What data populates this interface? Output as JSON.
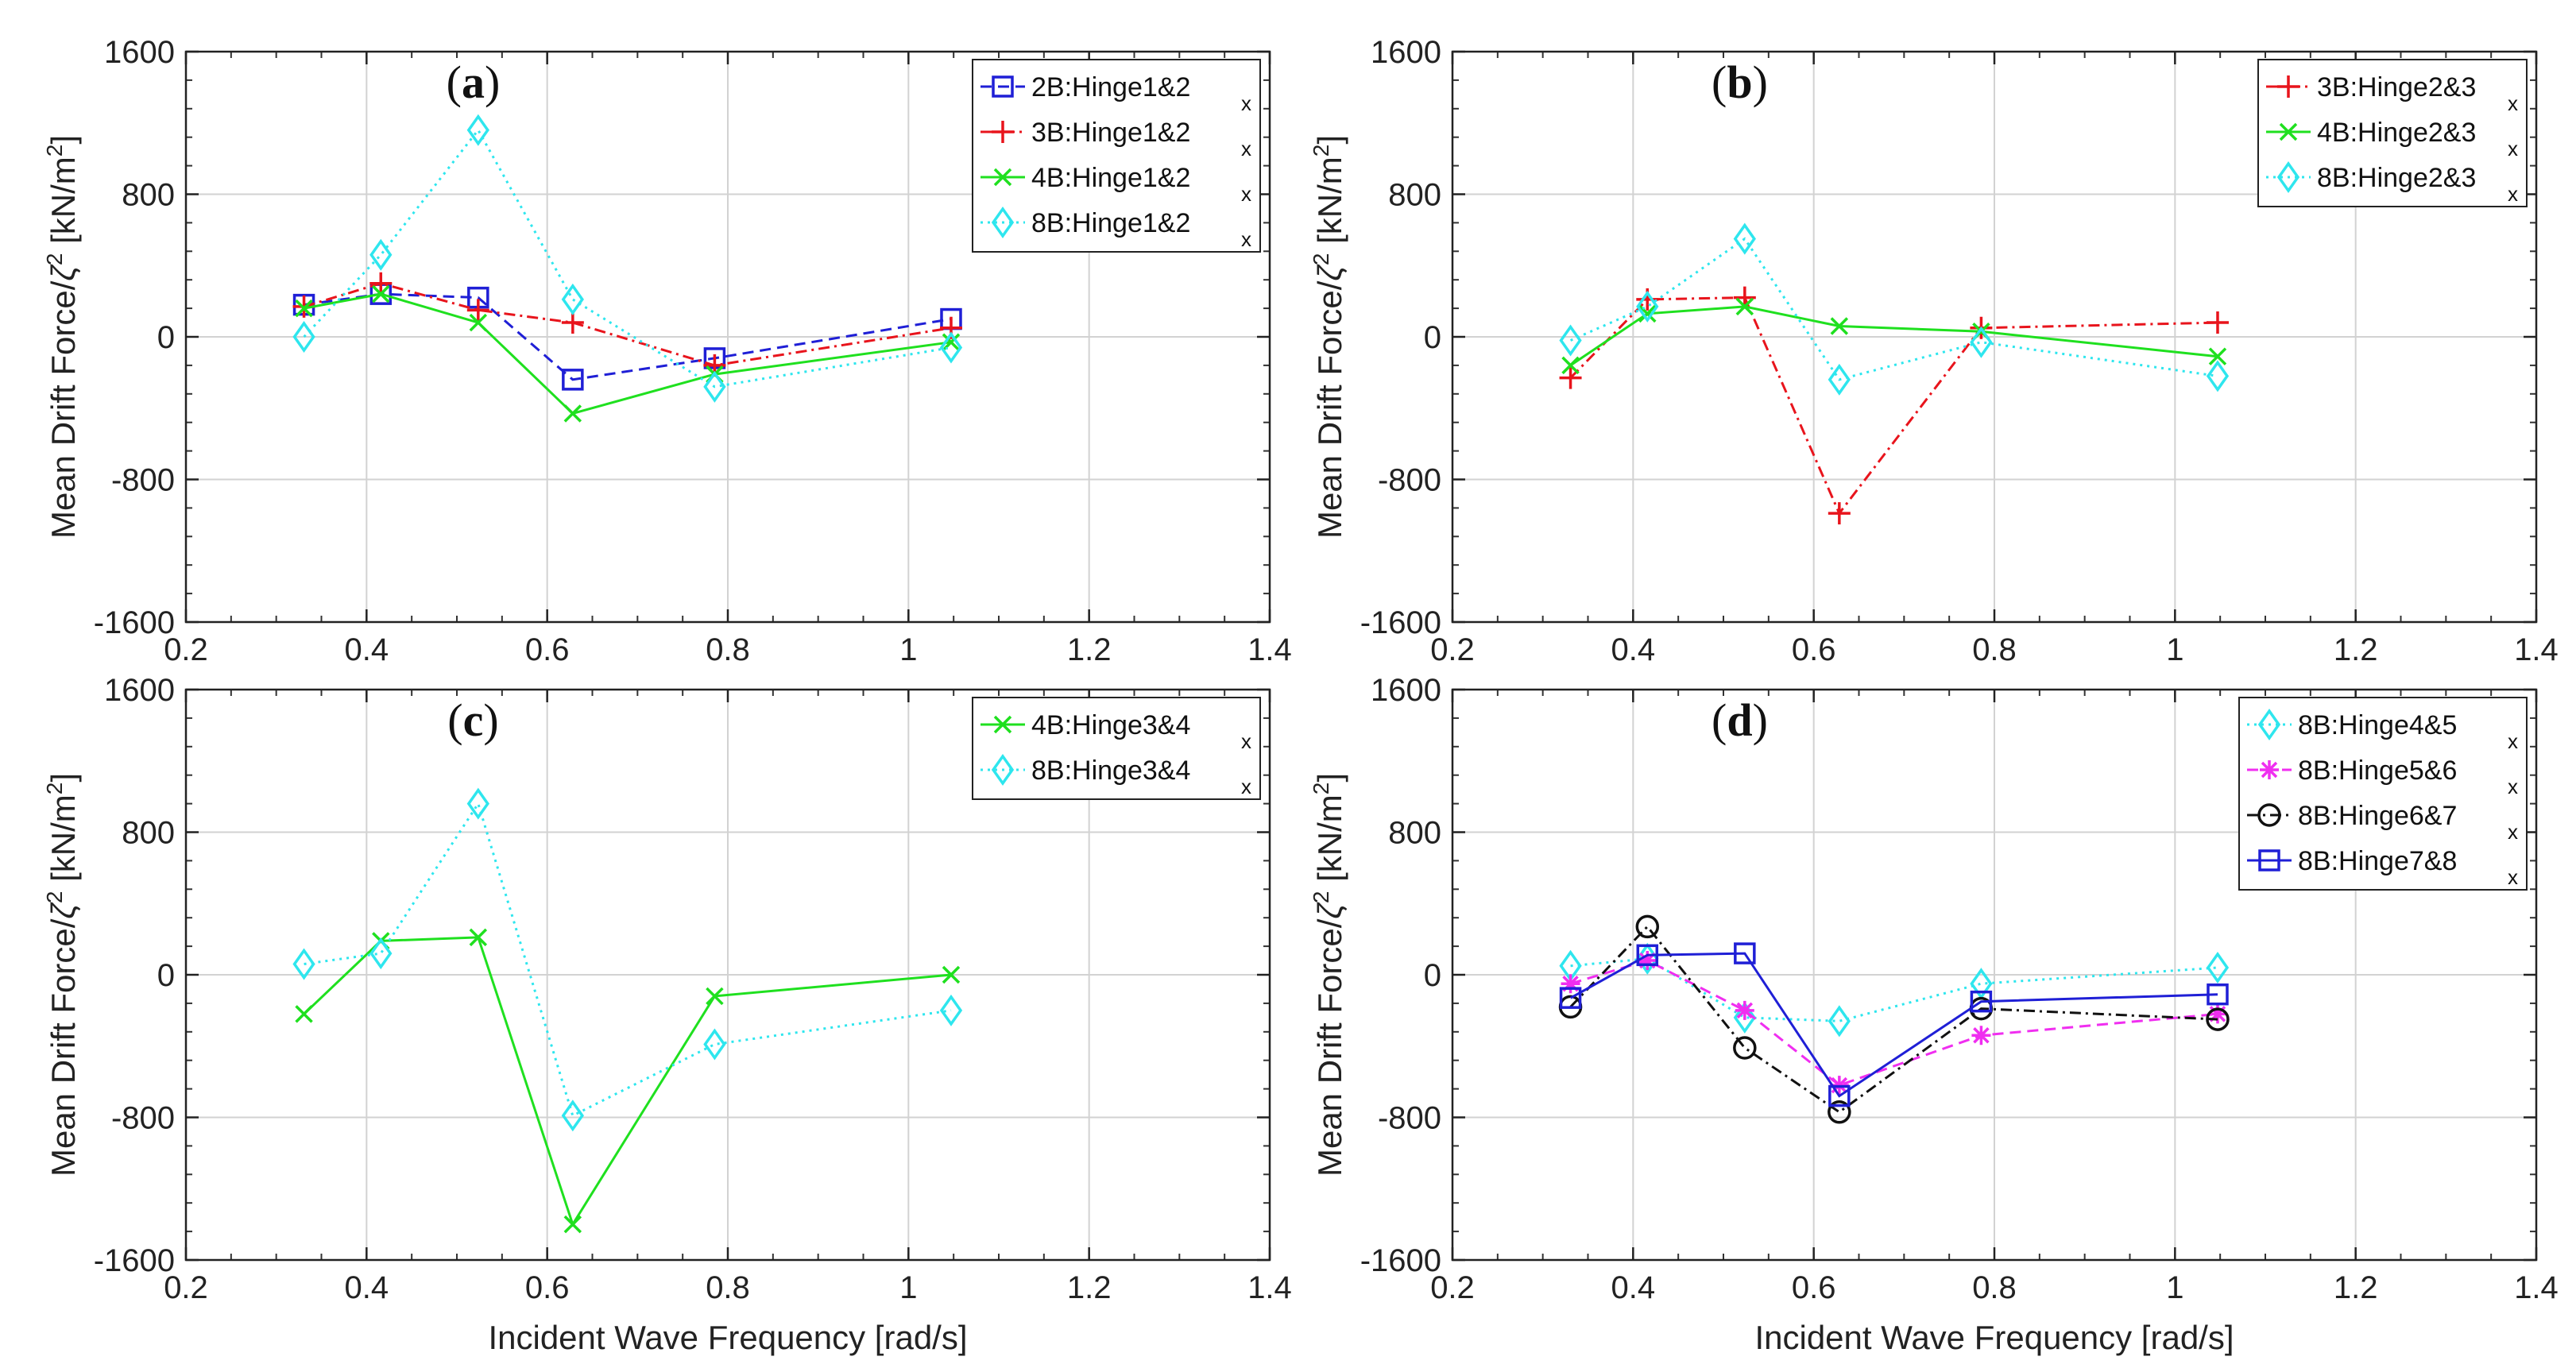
{
  "figure": {
    "xlabel": "Incident Wave Frequency [rad/s]",
    "ylabel_main": "Mean Drift Force/",
    "ylabel_symbol": "ζ",
    "ylabel_sup": "2",
    "ylabel_unit": " [kN/m",
    "ylabel_unit_sup": "2",
    "ylabel_end": "]"
  },
  "chart_data": [
    {
      "type": "line",
      "panel": "(a)",
      "title": "(a)",
      "xlim": [
        0.2,
        1.4
      ],
      "ylim": [
        -1600,
        1600
      ],
      "xticks": [
        "0.2",
        "0.4",
        "0.6",
        "0.8",
        "1",
        "1.2",
        "1.4"
      ],
      "yticks": [
        "1600",
        "800",
        "0",
        "-800",
        "-1600"
      ],
      "grid": true,
      "legend_position": "top-right",
      "x": [
        0.3307,
        0.4158,
        0.5236,
        0.6283,
        0.7854,
        1.0472
      ],
      "series": [
        {
          "name": "2B:Hinge1&2",
          "sub": "x",
          "color": "#1f1fd6",
          "dash": "14,8",
          "marker": "square",
          "values": [
            180,
            240,
            220,
            -240,
            -120,
            100
          ]
        },
        {
          "name": "3B:Hinge1&2",
          "sub": "x",
          "color": "#e8141c",
          "dash": "14,6,3,6",
          "marker": "plus",
          "values": [
            170,
            300,
            150,
            80,
            -160,
            50
          ]
        },
        {
          "name": "4B:Hinge1&2",
          "sub": "x",
          "color": "#1fe01f",
          "dash": "",
          "marker": "x",
          "values": [
            160,
            240,
            80,
            -430,
            -210,
            -30
          ]
        },
        {
          "name": "8B:Hinge1&2",
          "sub": "x",
          "color": "#2ee6ee",
          "dash": "3,6",
          "marker": "diamond",
          "values": [
            0,
            460,
            1160,
            210,
            -280,
            -60
          ]
        }
      ]
    },
    {
      "type": "line",
      "panel": "(b)",
      "title": "(b)",
      "xlim": [
        0.2,
        1.4
      ],
      "ylim": [
        -1600,
        1600
      ],
      "xticks": [
        "0.2",
        "0.4",
        "0.6",
        "0.8",
        "1",
        "1.2",
        "1.4"
      ],
      "yticks": [
        "1600",
        "800",
        "0",
        "-800",
        "-1600"
      ],
      "grid": true,
      "legend_position": "top-right",
      "x": [
        0.3307,
        0.4158,
        0.5236,
        0.6283,
        0.7854,
        1.0472
      ],
      "series": [
        {
          "name": "3B:Hinge2&3",
          "sub": "x",
          "color": "#e8141c",
          "dash": "14,6,3,6",
          "marker": "plus",
          "values": [
            -230,
            210,
            220,
            -990,
            50,
            80
          ]
        },
        {
          "name": "4B:Hinge2&3",
          "sub": "x",
          "color": "#1fe01f",
          "dash": "",
          "marker": "x",
          "values": [
            -160,
            130,
            170,
            60,
            30,
            -110
          ]
        },
        {
          "name": "8B:Hinge2&3",
          "sub": "x",
          "color": "#2ee6ee",
          "dash": "3,6",
          "marker": "diamond",
          "values": [
            -20,
            170,
            550,
            -240,
            -30,
            -220
          ]
        }
      ]
    },
    {
      "type": "line",
      "panel": "(c)",
      "title": "(c)",
      "xlim": [
        0.2,
        1.4
      ],
      "ylim": [
        -1600,
        1600
      ],
      "xticks": [
        "0.2",
        "0.4",
        "0.6",
        "0.8",
        "1",
        "1.2",
        "1.4"
      ],
      "yticks": [
        "1600",
        "800",
        "0",
        "-800",
        "-1600"
      ],
      "grid": true,
      "legend_position": "top-right",
      "x": [
        0.3307,
        0.4158,
        0.5236,
        0.6283,
        0.7854,
        1.0472
      ],
      "series": [
        {
          "name": "4B:Hinge3&4",
          "sub": "x",
          "color": "#1fe01f",
          "dash": "",
          "marker": "x",
          "values": [
            -220,
            190,
            210,
            -1400,
            -120,
            0
          ]
        },
        {
          "name": "8B:Hinge3&4",
          "sub": "x",
          "color": "#2ee6ee",
          "dash": "3,6",
          "marker": "diamond",
          "values": [
            60,
            120,
            960,
            -790,
            -390,
            -200
          ]
        }
      ]
    },
    {
      "type": "line",
      "panel": "(d)",
      "title": "(d)",
      "xlim": [
        0.2,
        1.4
      ],
      "ylim": [
        -1600,
        1600
      ],
      "xticks": [
        "0.2",
        "0.4",
        "0.6",
        "0.8",
        "1",
        "1.2",
        "1.4"
      ],
      "yticks": [
        "1600",
        "800",
        "0",
        "-800",
        "-1600"
      ],
      "grid": true,
      "legend_position": "top-right",
      "x": [
        0.3307,
        0.4158,
        0.5236,
        0.6283,
        0.7854,
        1.0472
      ],
      "series": [
        {
          "name": "8B:Hinge4&5",
          "sub": "x",
          "color": "#2ee6ee",
          "dash": "3,6",
          "marker": "diamond",
          "values": [
            50,
            90,
            -240,
            -260,
            -50,
            40
          ]
        },
        {
          "name": "8B:Hinge5&6",
          "sub": "x",
          "color": "#f02ef0",
          "dash": "14,8",
          "marker": "asterisk",
          "values": [
            -50,
            80,
            -200,
            -620,
            -340,
            -220
          ]
        },
        {
          "name": "8B:Hinge6&7",
          "sub": "x",
          "color": "#111111",
          "dash": "14,6,3,6",
          "marker": "circle",
          "values": [
            -180,
            270,
            -410,
            -770,
            -190,
            -250
          ]
        },
        {
          "name": "8B:Hinge7&8",
          "sub": "x",
          "color": "#1f1fd6",
          "dash": "",
          "marker": "square",
          "values": [
            -130,
            110,
            120,
            -680,
            -150,
            -110
          ]
        }
      ]
    }
  ]
}
